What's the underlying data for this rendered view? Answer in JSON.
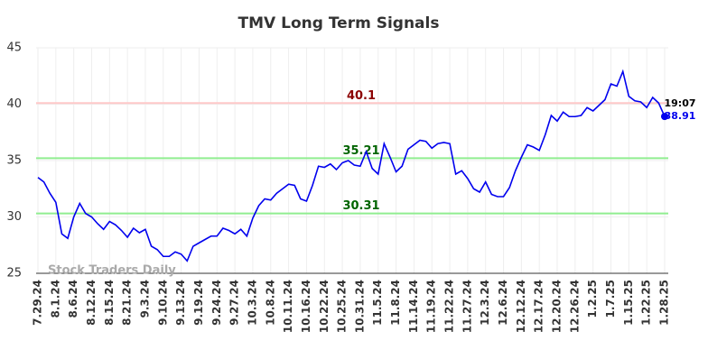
{
  "chart_data": {
    "type": "line",
    "title": "TMV Long Term Signals",
    "watermark": "Stock Traders Daily",
    "last_time": "19:07",
    "color": "#0000ee",
    "grid": true,
    "ylim": [
      25,
      45
    ],
    "yticks": [
      25,
      30,
      35,
      40,
      45
    ],
    "hlines": [
      {
        "value": 40.1,
        "color": "#ffc8c8",
        "text_color": "#8b0000"
      },
      {
        "value": 35.21,
        "color": "#90ee90",
        "text_color": "#006400"
      },
      {
        "value": 30.31,
        "color": "#90ee90",
        "text_color": "#006400"
      }
    ],
    "categories": [
      "7.29.24",
      null,
      null,
      "8.1.24",
      null,
      null,
      "8.6.24",
      null,
      null,
      "8.12.24",
      null,
      null,
      "8.15.24",
      null,
      null,
      "8.21.24",
      null,
      null,
      "9.3.24",
      null,
      null,
      "9.10.24",
      null,
      null,
      "9.13.24",
      null,
      null,
      "9.19.24",
      null,
      null,
      "9.24.24",
      null,
      null,
      "9.27.24",
      null,
      null,
      "10.3.24",
      null,
      null,
      "10.8.24",
      null,
      null,
      "10.11.24",
      null,
      null,
      "10.16.24",
      null,
      null,
      "10.22.24",
      null,
      null,
      "10.25.24",
      null,
      null,
      "10.31.24",
      null,
      null,
      "11.5.24",
      null,
      null,
      "11.8.24",
      null,
      null,
      "11.14.24",
      null,
      null,
      "11.19.24",
      null,
      null,
      "11.22.24",
      null,
      null,
      "11.27.24",
      null,
      null,
      "12.3.24",
      null,
      null,
      "12.6.24",
      null,
      null,
      "12.12.24",
      null,
      null,
      "12.17.24",
      null,
      null,
      "12.20.24",
      null,
      null,
      "12.26.24",
      null,
      null,
      "1.2.25",
      null,
      null,
      "1.7.25",
      null,
      null,
      "1.15.25",
      null,
      null,
      "1.22.25",
      null,
      null,
      "1.28.25"
    ],
    "values": [
      33.5,
      33.1,
      32.1,
      31.3,
      28.5,
      28.1,
      30.0,
      31.2,
      30.3,
      30.0,
      29.4,
      28.9,
      29.6,
      29.3,
      28.8,
      28.2,
      29.0,
      28.6,
      28.9,
      27.4,
      27.1,
      26.5,
      26.5,
      26.9,
      26.7,
      26.1,
      27.4,
      27.7,
      28.0,
      28.3,
      28.3,
      29.0,
      28.8,
      28.5,
      28.9,
      28.3,
      29.9,
      31.0,
      31.6,
      31.5,
      32.1,
      32.5,
      32.9,
      32.8,
      31.6,
      31.4,
      32.8,
      34.5,
      34.4,
      34.7,
      34.2,
      34.8,
      35.0,
      34.6,
      34.5,
      35.8,
      34.3,
      33.8,
      36.5,
      35.3,
      34.0,
      34.5,
      36.0,
      36.4,
      36.8,
      36.7,
      36.1,
      36.5,
      36.6,
      36.5,
      33.8,
      34.1,
      33.4,
      32.5,
      32.2,
      33.1,
      32.0,
      31.8,
      31.8,
      32.6,
      34.1,
      35.3,
      36.4,
      36.2,
      35.9,
      37.3,
      39.0,
      38.5,
      39.3,
      38.9,
      38.9,
      39.0,
      39.7,
      39.4,
      39.9,
      40.4,
      41.8,
      41.6,
      42.9,
      40.7,
      40.3,
      40.2,
      39.7,
      40.6,
      40.1,
      38.91
    ]
  }
}
